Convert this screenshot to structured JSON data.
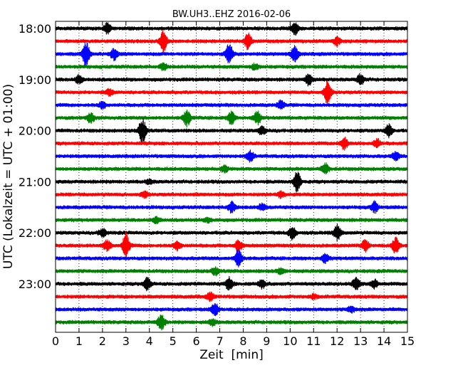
{
  "chart_data": {
    "type": "line",
    "title": "BW.UH3..EHZ 2016-02-06",
    "xlabel": "Zeit  [min]",
    "ylabel": "UTC (Lokalzeit = UTC + 01:00)",
    "xlim": [
      0,
      15
    ],
    "x_ticks": [
      "0",
      "1",
      "2",
      "3",
      "4",
      "5",
      "6",
      "7",
      "8",
      "9",
      "10",
      "11",
      "12",
      "13",
      "14",
      "15"
    ],
    "y_ticks": [
      "18:00",
      "19:00",
      "20:00",
      "21:00",
      "22:00",
      "23:00"
    ],
    "grid": "vertical dotted",
    "trace_interval_minutes": 15,
    "start_time": "18:00",
    "color_cycle": [
      "#000000",
      "#ff0000",
      "#0000ff",
      "#008000"
    ],
    "traces": [
      {
        "start": "18:00",
        "color": "#000000",
        "events": [
          [
            2.2,
            0.5
          ],
          [
            10.2,
            0.6
          ]
        ]
      },
      {
        "start": "18:15",
        "color": "#ff0000",
        "events": [
          [
            4.6,
            1.0
          ],
          [
            8.2,
            0.8
          ],
          [
            12.0,
            0.4
          ]
        ]
      },
      {
        "start": "18:30",
        "color": "#0000ff",
        "events": [
          [
            1.3,
            1.2
          ],
          [
            2.5,
            0.6
          ],
          [
            7.4,
            1.0
          ],
          [
            10.2,
            0.8
          ]
        ]
      },
      {
        "start": "18:45",
        "color": "#008000",
        "events": [
          [
            4.6,
            0.3
          ],
          [
            8.5,
            0.3
          ]
        ]
      },
      {
        "start": "19:00",
        "color": "#000000",
        "events": [
          [
            1.0,
            0.4
          ],
          [
            10.8,
            0.6
          ],
          [
            13.0,
            0.5
          ]
        ]
      },
      {
        "start": "19:15",
        "color": "#ff0000",
        "events": [
          [
            11.6,
            1.1
          ],
          [
            2.3,
            0.3
          ]
        ]
      },
      {
        "start": "19:30",
        "color": "#0000ff",
        "events": [
          [
            2.0,
            0.3
          ],
          [
            9.6,
            0.4
          ]
        ]
      },
      {
        "start": "19:45",
        "color": "#008000",
        "events": [
          [
            1.5,
            0.5
          ],
          [
            5.6,
            0.8
          ],
          [
            7.5,
            0.6
          ],
          [
            8.6,
            0.6
          ]
        ]
      },
      {
        "start": "20:00",
        "color": "#000000",
        "events": [
          [
            3.7,
            1.3
          ],
          [
            8.8,
            0.4
          ],
          [
            14.2,
            0.6
          ]
        ]
      },
      {
        "start": "20:15",
        "color": "#ff0000",
        "events": [
          [
            12.3,
            0.6
          ],
          [
            13.7,
            0.4
          ]
        ]
      },
      {
        "start": "20:30",
        "color": "#0000ff",
        "events": [
          [
            8.3,
            0.5
          ],
          [
            14.5,
            0.4
          ]
        ]
      },
      {
        "start": "20:45",
        "color": "#008000",
        "events": [
          [
            7.2,
            0.3
          ],
          [
            11.5,
            0.5
          ]
        ]
      },
      {
        "start": "21:00",
        "color": "#000000",
        "events": [
          [
            10.3,
            1.0
          ],
          [
            4.0,
            0.2
          ]
        ]
      },
      {
        "start": "21:15",
        "color": "#ff0000",
        "events": [
          [
            3.8,
            0.3
          ],
          [
            9.6,
            0.3
          ]
        ]
      },
      {
        "start": "21:30",
        "color": "#0000ff",
        "events": [
          [
            7.5,
            0.5
          ],
          [
            13.6,
            0.5
          ],
          [
            8.8,
            0.3
          ]
        ]
      },
      {
        "start": "21:45",
        "color": "#008000",
        "events": [
          [
            4.3,
            0.3
          ],
          [
            6.5,
            0.2
          ]
        ]
      },
      {
        "start": "22:00",
        "color": "#000000",
        "events": [
          [
            2.0,
            0.4
          ],
          [
            10.1,
            0.6
          ],
          [
            12.0,
            0.8
          ]
        ]
      },
      {
        "start": "22:15",
        "color": "#ff0000",
        "events": [
          [
            3.0,
            1.2
          ],
          [
            2.2,
            0.5
          ],
          [
            5.2,
            0.4
          ],
          [
            7.8,
            0.5
          ],
          [
            13.2,
            0.5
          ],
          [
            14.5,
            0.8
          ]
        ]
      },
      {
        "start": "22:30",
        "color": "#0000ff",
        "events": [
          [
            7.8,
            0.9
          ],
          [
            11.5,
            0.4
          ]
        ]
      },
      {
        "start": "22:45",
        "color": "#008000",
        "events": [
          [
            6.8,
            0.4
          ],
          [
            9.6,
            0.3
          ]
        ]
      },
      {
        "start": "23:00",
        "color": "#000000",
        "events": [
          [
            3.9,
            0.6
          ],
          [
            7.4,
            0.6
          ],
          [
            8.8,
            0.4
          ],
          [
            12.8,
            0.6
          ],
          [
            13.6,
            0.4
          ]
        ]
      },
      {
        "start": "23:15",
        "color": "#ff0000",
        "events": [
          [
            6.6,
            0.4
          ],
          [
            11.0,
            0.2
          ]
        ]
      },
      {
        "start": "23:30",
        "color": "#0000ff",
        "events": [
          [
            6.8,
            0.6
          ],
          [
            12.6,
            0.3
          ]
        ]
      },
      {
        "start": "23:45",
        "color": "#008000",
        "events": [
          [
            4.5,
            0.8
          ],
          [
            6.7,
            0.3
          ]
        ]
      }
    ]
  }
}
